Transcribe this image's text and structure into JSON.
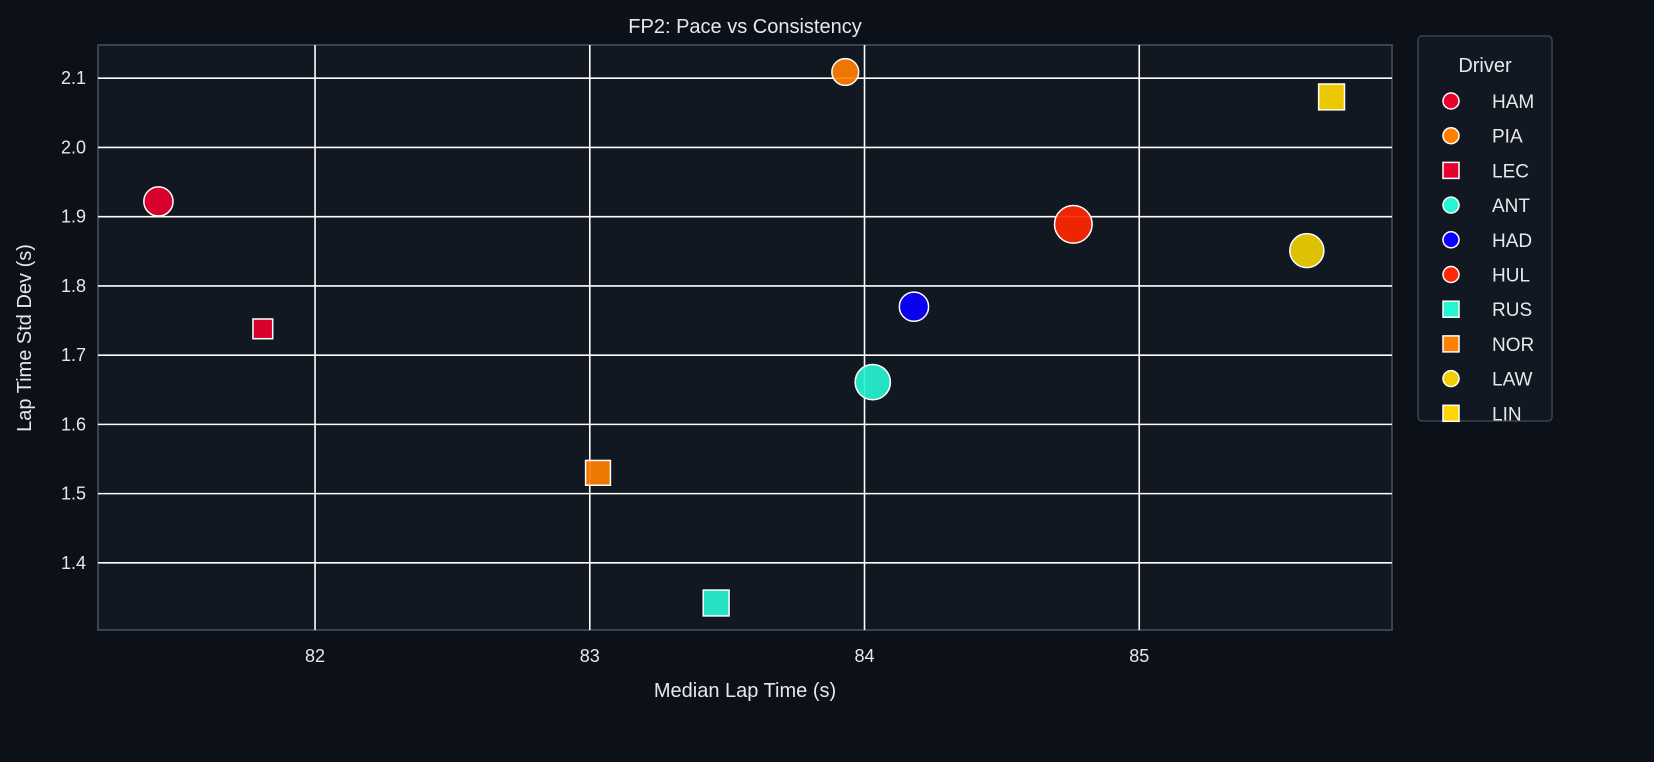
{
  "chart_data": {
    "type": "scatter",
    "title": "FP2: Pace vs Consistency",
    "xlabel": "Median Lap Time (s)",
    "ylabel": "Lap Time Std Dev (s)",
    "xlim": [
      81.21,
      85.92
    ],
    "ylim": [
      1.303,
      2.148
    ],
    "xticks": [
      "82",
      "83",
      "84",
      "85"
    ],
    "yticks": [
      "1.4",
      "1.5",
      "1.6",
      "1.7",
      "1.8",
      "1.9",
      "2.0",
      "2.1"
    ],
    "grid": true,
    "legend": {
      "title": "Driver",
      "placement": "outside-right"
    },
    "points": [
      {
        "driver": "HAM",
        "x": 81.43,
        "y": 1.922,
        "marker": "circle",
        "color": "#e8002d",
        "size": 0.55
      },
      {
        "driver": "PIA",
        "x": 83.93,
        "y": 2.109,
        "marker": "circle",
        "color": "#ff8000",
        "size": 0.45
      },
      {
        "driver": "LEC",
        "x": 81.81,
        "y": 1.738,
        "marker": "square",
        "color": "#e8002d",
        "size": 0.3
      },
      {
        "driver": "ANT",
        "x": 84.03,
        "y": 1.661,
        "marker": "circle",
        "color": "#27f4d2",
        "size": 0.8
      },
      {
        "driver": "HAD",
        "x": 84.18,
        "y": 1.77,
        "marker": "circle",
        "color": "#0a00ff",
        "size": 0.55
      },
      {
        "driver": "HUL",
        "x": 84.76,
        "y": 1.889,
        "marker": "circle",
        "color": "#ff2800",
        "size": 0.9
      },
      {
        "driver": "RUS",
        "x": 83.46,
        "y": 1.342,
        "marker": "square",
        "color": "#27f4d2",
        "size": 0.6
      },
      {
        "driver": "NOR",
        "x": 83.03,
        "y": 1.53,
        "marker": "square",
        "color": "#ff8000",
        "size": 0.55
      },
      {
        "driver": "LAW",
        "x": 85.61,
        "y": 1.851,
        "marker": "circle",
        "color": "#f0d000",
        "size": 0.75
      },
      {
        "driver": "LIN",
        "x": 85.7,
        "y": 2.073,
        "marker": "square",
        "color": "#ffd700",
        "size": 0.6
      }
    ]
  }
}
